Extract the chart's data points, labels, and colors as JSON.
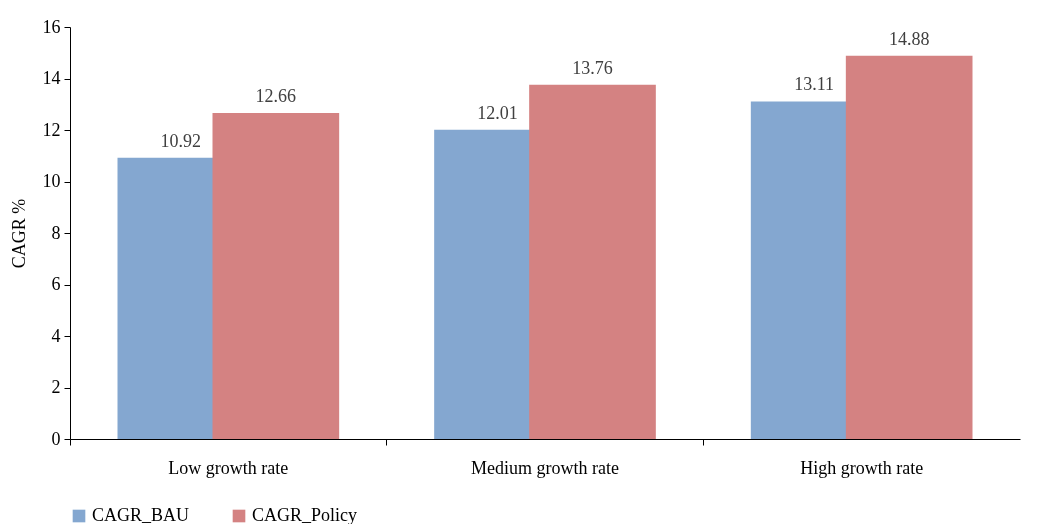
{
  "chart_data": {
    "type": "bar",
    "ylabel": "CAGR %",
    "categories": [
      "Low growth rate",
      "Medium growth rate",
      "High growth rate"
    ],
    "series": [
      {
        "name": "CAGR_BAU",
        "color": "#84a7d0",
        "values": [
          10.92,
          12.01,
          13.11
        ]
      },
      {
        "name": "CAGR_Policy",
        "color": "#d48282",
        "values": [
          12.66,
          13.76,
          14.88
        ]
      }
    ],
    "ylim": [
      0,
      16
    ],
    "yticks": [
      0,
      2,
      4,
      6,
      8,
      10,
      12,
      14,
      16
    ],
    "grid": false,
    "legend": "bottom",
    "data_labels": true
  }
}
